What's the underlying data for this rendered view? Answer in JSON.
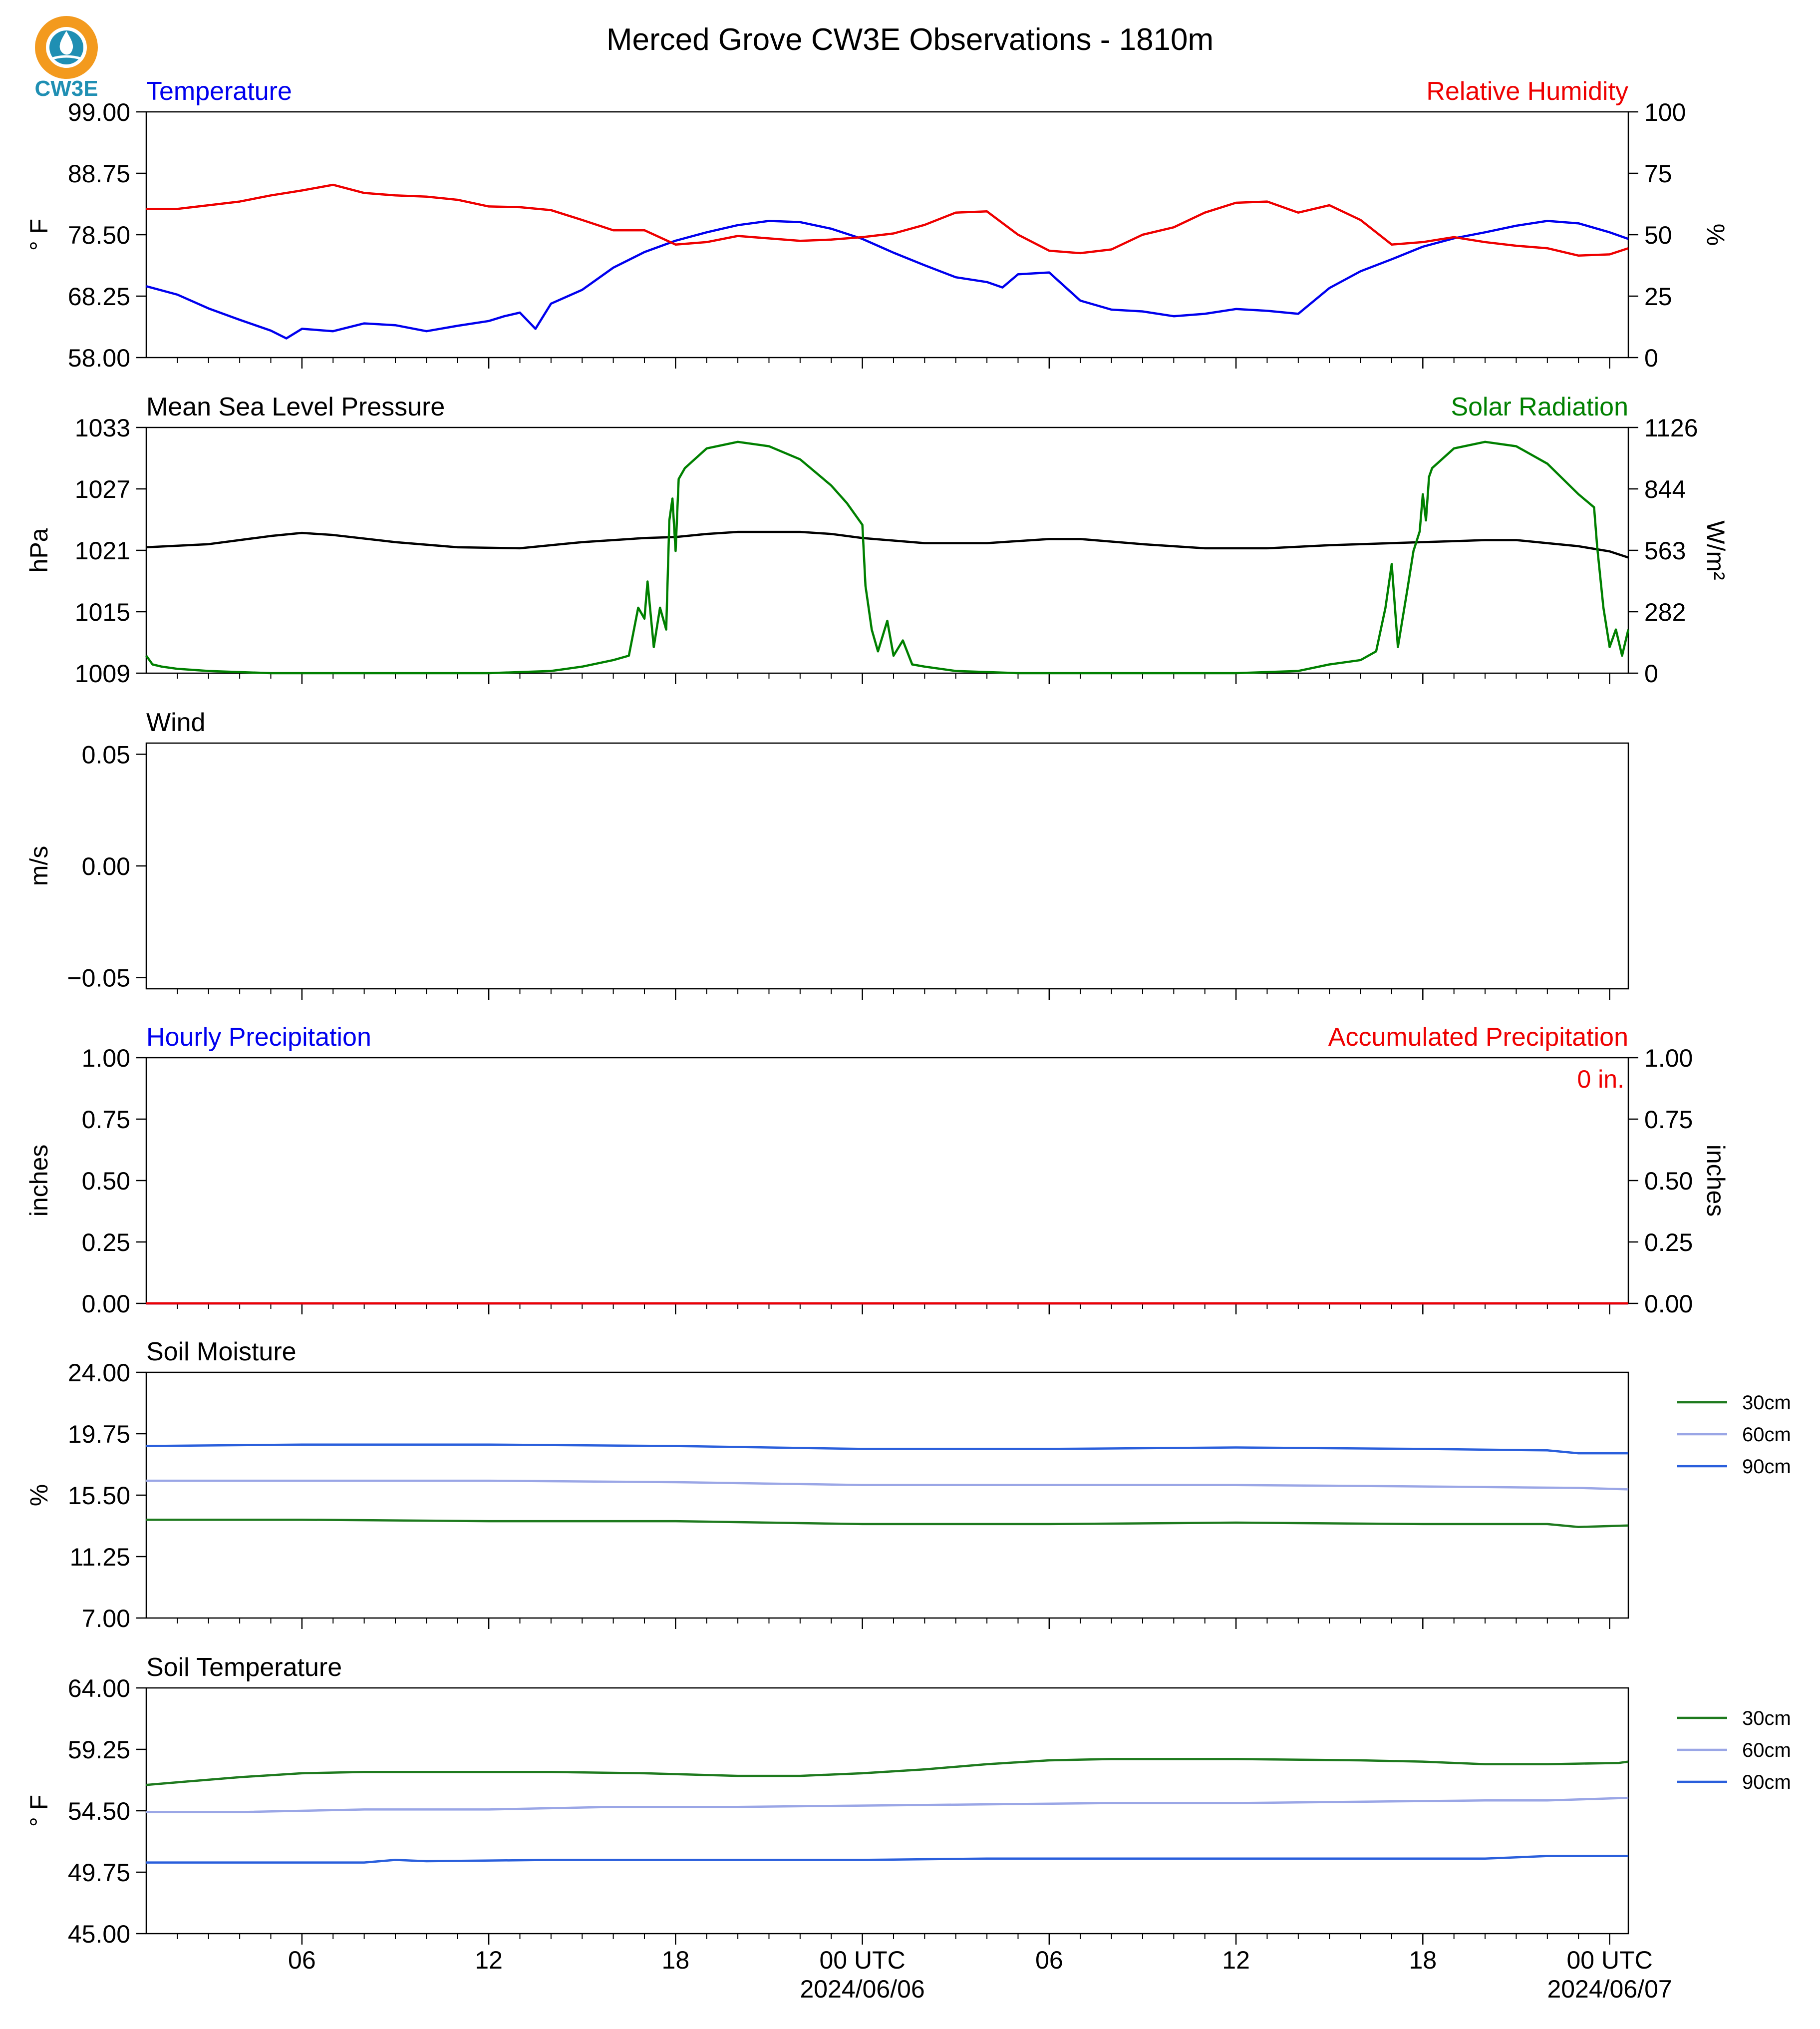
{
  "title": "Merced Grove CW3E Observations - 1810m",
  "logo_text": "CW3E",
  "colors": {
    "temperature": "#0000ee",
    "humidity": "#ee0000",
    "pressure": "#000000",
    "solar": "#008000",
    "hourly_precip": "#0000ee",
    "accum_precip": "#ee0000",
    "soil_30": "#1e7a1e",
    "soil_60": "#9aa6e6",
    "soil_90": "#2a5fdc",
    "logo_orange": "#f39a1e",
    "logo_teal": "#1f8fb3"
  },
  "time_axis": {
    "start": "2024-06-05 01:00 UTC",
    "end": "2024-06-07 01:00 UTC",
    "tick_labels": [
      "06",
      "12",
      "18",
      "00 UTC",
      "06",
      "12",
      "18",
      "00 UTC"
    ],
    "date_labels": [
      "2024/06/06",
      "2024/06/07"
    ]
  },
  "chart_data": [
    {
      "type": "line",
      "panel": "temperature_humidity",
      "title_left": "Temperature",
      "title_right": "Relative Humidity",
      "ylabel_left": "° F",
      "ylabel_right": "%",
      "ylim_left": [
        58.0,
        99.0
      ],
      "ylim_right": [
        0,
        100
      ],
      "yticks_left": [
        "99.00",
        "88.75",
        "78.50",
        "68.25",
        "58.00"
      ],
      "yticks_right": [
        "100",
        "75",
        "50",
        "25",
        "0"
      ],
      "series": [
        {
          "name": "Temperature",
          "axis": "left",
          "color_key": "temperature",
          "x_hours": [
            1,
            2,
            3,
            4,
            5,
            5.5,
            6,
            7,
            8,
            9,
            10,
            11,
            12,
            12.5,
            13,
            13.5,
            14,
            15,
            16,
            17,
            18,
            19,
            20,
            21,
            22,
            23,
            24,
            25,
            26,
            27,
            28,
            28.5,
            29,
            30,
            31,
            32,
            33,
            34,
            35,
            36,
            37,
            38,
            39,
            40,
            41,
            42,
            43,
            44,
            45,
            46,
            47,
            48,
            48.6
          ],
          "values": [
            69.9,
            68.5,
            66.2,
            64.3,
            62.5,
            61.2,
            62.8,
            62.4,
            63.7,
            63.4,
            62.4,
            63.3,
            64.1,
            64.9,
            65.5,
            62.8,
            67.0,
            69.3,
            73.0,
            75.6,
            77.5,
            78.9,
            80.1,
            80.8,
            80.6,
            79.5,
            77.8,
            75.5,
            73.4,
            71.4,
            70.6,
            69.7,
            71.9,
            72.2,
            67.5,
            66.0,
            65.7,
            64.9,
            65.3,
            66.1,
            65.8,
            65.3,
            69.6,
            72.4,
            74.4,
            76.5,
            77.9,
            78.9,
            80.0,
            80.8,
            80.4,
            78.9,
            77.8
          ]
        },
        {
          "name": "Relative Humidity",
          "axis": "right",
          "color_key": "humidity",
          "x_hours": [
            1,
            2,
            3,
            4,
            5,
            6,
            7,
            8,
            9,
            10,
            11,
            12,
            13,
            14,
            15,
            16,
            17,
            18,
            19,
            20,
            21,
            22,
            23,
            24,
            25,
            26,
            27,
            28,
            29,
            30,
            31,
            32,
            33,
            34,
            35,
            36,
            37,
            38,
            39,
            40,
            41,
            42,
            43,
            44,
            45,
            46,
            47,
            48,
            48.6
          ],
          "values": [
            60.5,
            60.5,
            62.0,
            63.5,
            66.0,
            68.0,
            70.3,
            67.0,
            66.0,
            65.5,
            64.2,
            61.5,
            61.2,
            60.0,
            56.0,
            51.8,
            51.8,
            46.0,
            47.0,
            49.5,
            48.5,
            47.5,
            48.0,
            49.0,
            50.5,
            54.0,
            59.0,
            59.5,
            50.0,
            43.5,
            42.5,
            44.0,
            50.0,
            53.0,
            59.0,
            63.0,
            63.5,
            59.0,
            62.0,
            56.0,
            46.0,
            47.0,
            49.0,
            47.0,
            45.5,
            44.5,
            41.5,
            42.0,
            44.5
          ]
        }
      ]
    },
    {
      "type": "line",
      "panel": "pressure_solar",
      "title_left": "Mean Sea Level Pressure",
      "title_right": "Solar Radiation",
      "ylabel_left": "hPa",
      "ylabel_right": "W/m²",
      "ylim_left": [
        1009,
        1033
      ],
      "ylim_right": [
        0,
        1126
      ],
      "yticks_left": [
        "1033",
        "1027",
        "1021",
        "1015",
        "1009"
      ],
      "yticks_right": [
        "1126",
        "844",
        "563",
        "282",
        "0"
      ],
      "series": [
        {
          "name": "Mean Sea Level Pressure",
          "axis": "left",
          "color_key": "pressure",
          "x_hours": [
            1,
            3,
            5,
            6,
            7,
            9,
            11,
            13,
            15,
            17,
            18,
            19,
            20,
            21,
            22,
            23,
            24,
            26,
            28,
            30,
            31,
            33,
            35,
            37,
            39,
            41,
            43,
            44,
            45,
            46,
            47,
            48,
            48.6
          ],
          "values": [
            1021.3,
            1021.6,
            1022.4,
            1022.7,
            1022.5,
            1021.8,
            1021.3,
            1021.2,
            1021.8,
            1022.2,
            1022.3,
            1022.6,
            1022.8,
            1022.8,
            1022.8,
            1022.6,
            1022.2,
            1021.7,
            1021.7,
            1022.1,
            1022.1,
            1021.6,
            1021.2,
            1021.2,
            1021.5,
            1021.7,
            1021.9,
            1022.0,
            1022.0,
            1021.7,
            1021.4,
            1020.9,
            1020.3
          ]
        },
        {
          "name": "Solar Radiation",
          "axis": "right",
          "color_key": "solar",
          "x_hours": [
            1,
            1.2,
            1.5,
            2,
            3,
            5,
            8,
            12,
            14,
            15,
            16,
            16.5,
            16.8,
            17,
            17.1,
            17.3,
            17.5,
            17.7,
            17.8,
            17.9,
            18.0,
            18.1,
            18.3,
            19,
            20,
            21,
            22,
            23,
            23.5,
            24.0,
            24.1,
            24.2,
            24.3,
            24.5,
            24.8,
            25,
            25.3,
            25.6,
            26,
            27,
            29,
            31,
            36,
            38,
            39,
            40,
            40.5,
            40.8,
            41.0,
            41.2,
            41.5,
            41.7,
            41.9,
            42.0,
            42.1,
            42.2,
            42.3,
            43,
            44,
            45,
            46,
            47,
            47.5,
            47.6,
            47.8,
            48.0,
            48.2,
            48.4,
            48.6
          ],
          "values": [
            80,
            40,
            30,
            20,
            10,
            0,
            0,
            0,
            10,
            30,
            60,
            80,
            300,
            250,
            420,
            120,
            300,
            200,
            700,
            800,
            560,
            890,
            940,
            1030,
            1060,
            1040,
            980,
            860,
            780,
            680,
            400,
            300,
            200,
            100,
            240,
            80,
            150,
            40,
            30,
            10,
            0,
            0,
            0,
            10,
            40,
            60,
            100,
            300,
            500,
            120,
            380,
            560,
            650,
            820,
            700,
            900,
            940,
            1030,
            1060,
            1040,
            960,
            820,
            760,
            580,
            300,
            120,
            200,
            80,
            200
          ]
        }
      ]
    },
    {
      "type": "line",
      "panel": "wind",
      "title_left": "Wind",
      "ylabel_left": "m/s",
      "ylim_left": [
        -0.055,
        0.055
      ],
      "yticks_left": [
        "0.05",
        "0.00",
        "−0.05"
      ],
      "series": []
    },
    {
      "type": "line",
      "panel": "precipitation",
      "title_left": "Hourly Precipitation",
      "title_right": "Accumulated Precipitation",
      "ylabel_left": "inches",
      "ylabel_right": "inches",
      "ylim_left": [
        0,
        1
      ],
      "ylim_right": [
        0,
        1
      ],
      "yticks_left": [
        "1.00",
        "0.75",
        "0.50",
        "0.25",
        "0.00"
      ],
      "yticks_right": [
        "1.00",
        "0.75",
        "0.50",
        "0.25",
        "0.00"
      ],
      "annotation": "0 in.",
      "series": [
        {
          "name": "Hourly Precipitation",
          "axis": "left",
          "color_key": "hourly_precip",
          "x_hours": [
            1,
            48.6
          ],
          "values": [
            0,
            0
          ]
        },
        {
          "name": "Accumulated Precipitation",
          "axis": "right",
          "color_key": "accum_precip",
          "x_hours": [
            1,
            48.6
          ],
          "values": [
            0,
            0
          ]
        }
      ]
    },
    {
      "type": "line",
      "panel": "soil_moisture",
      "title_left": "Soil Moisture",
      "ylabel_left": "%",
      "ylim_left": [
        7.0,
        24.0
      ],
      "yticks_left": [
        "24.00",
        "19.75",
        "15.50",
        "11.25",
        "7.00"
      ],
      "legend": [
        "30cm",
        "60cm",
        "90cm"
      ],
      "series": [
        {
          "name": "30cm",
          "axis": "left",
          "color_key": "soil_30",
          "x_hours": [
            1,
            6,
            12,
            18,
            24,
            30,
            36,
            42,
            46,
            47,
            48.6
          ],
          "values": [
            13.8,
            13.8,
            13.7,
            13.7,
            13.5,
            13.5,
            13.6,
            13.5,
            13.5,
            13.3,
            13.4
          ]
        },
        {
          "name": "60cm",
          "axis": "left",
          "color_key": "soil_60",
          "x_hours": [
            1,
            6,
            12,
            18,
            24,
            30,
            36,
            42,
            47,
            48.6
          ],
          "values": [
            16.5,
            16.5,
            16.5,
            16.4,
            16.2,
            16.2,
            16.2,
            16.1,
            16.0,
            15.9
          ]
        },
        {
          "name": "90cm",
          "axis": "left",
          "color_key": "soil_90",
          "x_hours": [
            1,
            6,
            12,
            18,
            24,
            30,
            36,
            42,
            46,
            47,
            48.6
          ],
          "values": [
            18.9,
            19.0,
            19.0,
            18.9,
            18.7,
            18.7,
            18.8,
            18.7,
            18.6,
            18.4,
            18.4
          ]
        }
      ]
    },
    {
      "type": "line",
      "panel": "soil_temperature",
      "title_left": "Soil Temperature",
      "ylabel_left": "° F",
      "ylim_left": [
        45.0,
        64.0
      ],
      "yticks_left": [
        "64.00",
        "59.25",
        "54.50",
        "49.75",
        "45.00"
      ],
      "legend": [
        "30cm",
        "60cm",
        "90cm"
      ],
      "series": [
        {
          "name": "30cm",
          "axis": "left",
          "color_key": "soil_30",
          "x_hours": [
            1,
            2,
            4,
            6,
            8,
            14,
            17,
            20,
            22,
            24,
            26,
            28,
            30,
            32,
            36,
            40,
            42,
            44,
            46,
            48.3,
            48.6
          ],
          "values": [
            56.5,
            56.7,
            57.1,
            57.4,
            57.5,
            57.5,
            57.4,
            57.2,
            57.2,
            57.4,
            57.7,
            58.1,
            58.4,
            58.5,
            58.5,
            58.4,
            58.3,
            58.1,
            58.1,
            58.2,
            58.3
          ]
        },
        {
          "name": "60cm",
          "axis": "left",
          "color_key": "soil_60",
          "x_hours": [
            1,
            4,
            8,
            12,
            16,
            20,
            24,
            28,
            32,
            36,
            40,
            44,
            46,
            48.6
          ],
          "values": [
            54.4,
            54.4,
            54.6,
            54.6,
            54.8,
            54.8,
            54.9,
            55.0,
            55.1,
            55.1,
            55.2,
            55.3,
            55.3,
            55.5
          ]
        },
        {
          "name": "90cm",
          "axis": "left",
          "color_key": "soil_90",
          "x_hours": [
            1,
            8,
            9,
            10,
            14,
            20,
            24,
            28,
            32,
            40,
            44,
            45,
            46,
            48.6
          ],
          "values": [
            50.5,
            50.5,
            50.7,
            50.6,
            50.7,
            50.7,
            50.7,
            50.8,
            50.8,
            50.8,
            50.8,
            50.9,
            51.0,
            51.0
          ]
        }
      ]
    }
  ]
}
